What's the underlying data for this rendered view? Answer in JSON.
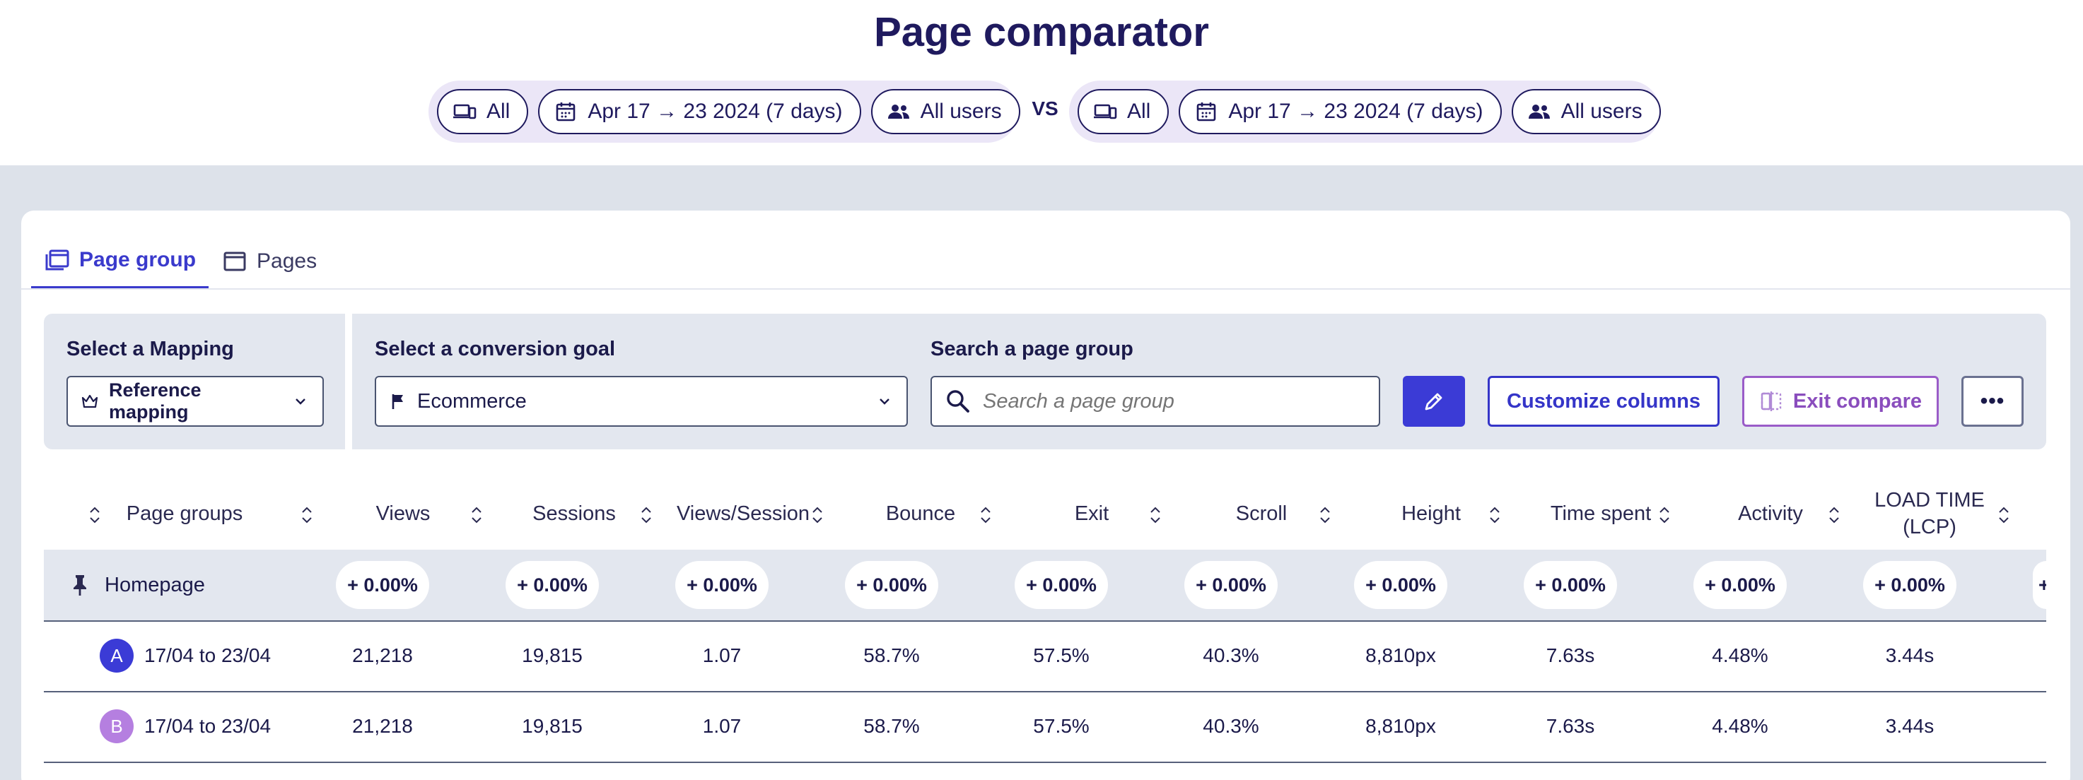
{
  "header": {
    "title": "Page comparator",
    "segment_a": {
      "device": "All",
      "date": "Apr 17 → 23 2024 (7 days)",
      "users": "All users"
    },
    "vs": "VS",
    "segment_b": {
      "device": "All",
      "date": "Apr 17 → 23 2024 (7 days)",
      "users": "All users"
    }
  },
  "tabs": [
    {
      "label": "Page group",
      "active": true,
      "icon": "page-group-icon"
    },
    {
      "label": "Pages",
      "active": false,
      "icon": "page-icon"
    }
  ],
  "filters": {
    "mapping_label": "Select a Mapping",
    "mapping_value": "Reference mapping",
    "goal_label": "Select a conversion goal",
    "goal_value": "Ecommerce",
    "search_label": "Search a page group",
    "search_placeholder": "Search a page group",
    "customize_label": "Customize columns",
    "exit_label": "Exit compare",
    "more_label": "•••"
  },
  "table": {
    "columns": [
      "Page groups",
      "Views",
      "Sessions",
      "Views/Session",
      "Bounce",
      "Exit",
      "Scroll",
      "Height",
      "Time spent",
      "Activity",
      "LOAD TIME (LCP)"
    ],
    "pinned_row": {
      "label": "Homepage",
      "deltas": [
        "+ 0.00%",
        "+ 0.00%",
        "+ 0.00%",
        "+ 0.00%",
        "+ 0.00%",
        "+ 0.00%",
        "+ 0.00%",
        "+ 0.00%",
        "+ 0.00%",
        "+ 0.00%"
      ],
      "partial_delta": "+"
    },
    "rows": [
      {
        "badge": "A",
        "label": "17/04 to 23/04",
        "values": [
          "21,218",
          "19,815",
          "1.07",
          "58.7%",
          "57.5%",
          "40.3%",
          "8,810px",
          "7.63s",
          "4.48%",
          "3.44s"
        ]
      },
      {
        "badge": "B",
        "label": "17/04 to 23/04",
        "values": [
          "21,218",
          "19,815",
          "1.07",
          "58.7%",
          "57.5%",
          "40.3%",
          "8,810px",
          "7.63s",
          "4.48%",
          "3.44s"
        ]
      }
    ]
  },
  "colors": {
    "primary": "#3b3bd6",
    "badge_a": "#3b3bd6",
    "badge_b": "#b57fe0",
    "exit": "#9a5cc8",
    "navy": "#1f1a5e"
  }
}
